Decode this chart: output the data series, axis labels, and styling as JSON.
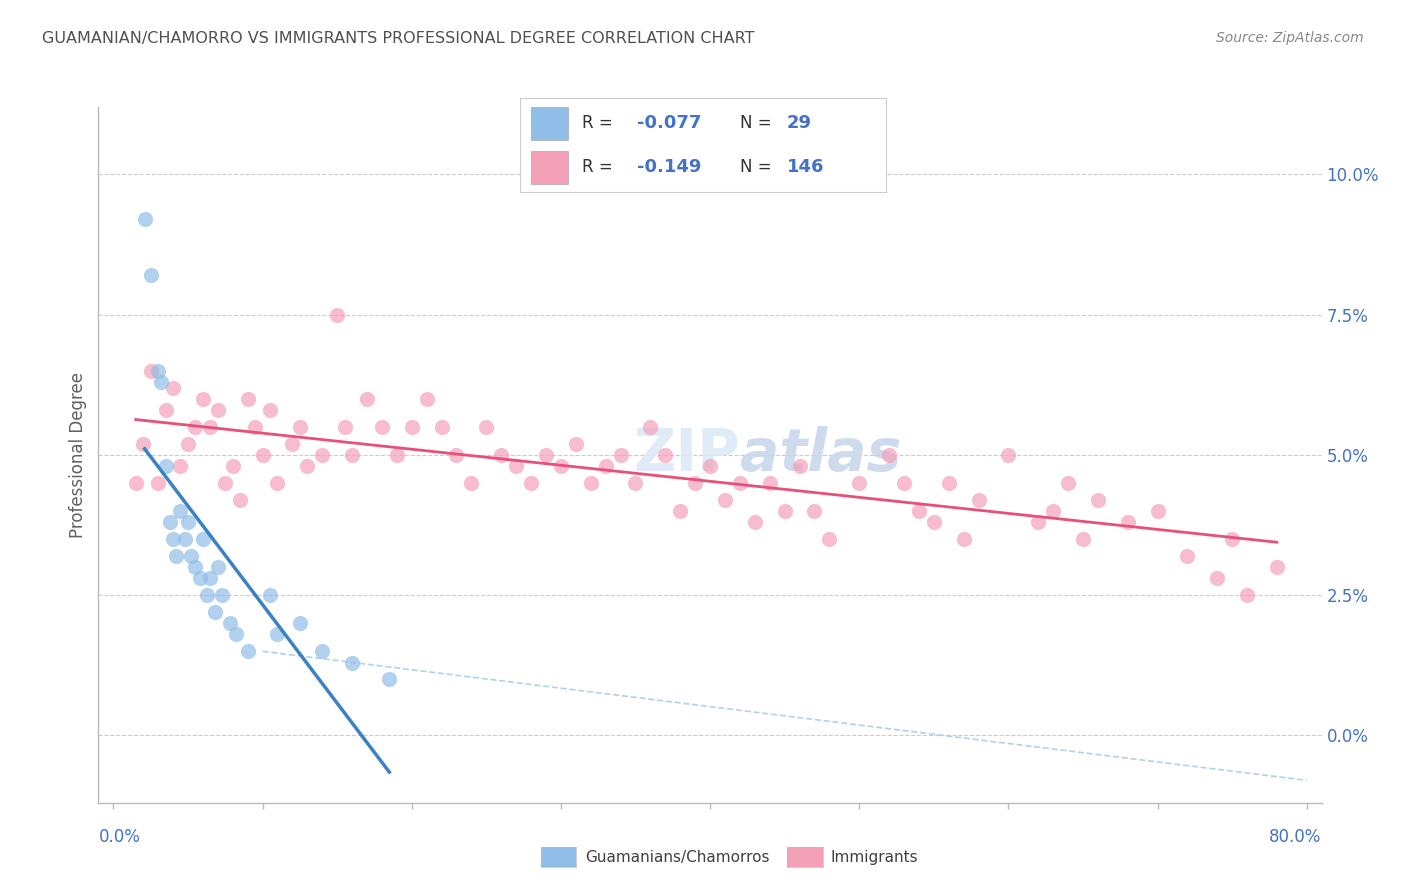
{
  "title": "GUAMANIAN/CHAMORRO VS IMMIGRANTS PROFESSIONAL DEGREE CORRELATION CHART",
  "source": "Source: ZipAtlas.com",
  "ylabel": "Professional Degree",
  "xlim": [
    0.0,
    80.0
  ],
  "ylim": [
    0.0,
    10.0
  ],
  "y_ticks": [
    0.0,
    2.5,
    5.0,
    7.5,
    10.0
  ],
  "r_blue": -0.077,
  "n_blue": 29,
  "r_pink": -0.149,
  "n_pink": 146,
  "blue_color": "#90BEE8",
  "pink_color": "#F4A0B8",
  "trend_blue_color": "#3B82C4",
  "trend_pink_color": "#E8507A",
  "diagonal_dash_color": "#A8CCEE",
  "background_color": "#FFFFFF",
  "title_color": "#505050",
  "axis_label_color": "#4472C4",
  "watermark_color": "#DCE9F5",
  "blue_scatter_x": [
    2.1,
    2.5,
    3.0,
    3.2,
    3.5,
    3.8,
    4.0,
    4.2,
    4.5,
    4.8,
    5.0,
    5.2,
    5.5,
    5.8,
    6.0,
    6.3,
    6.5,
    6.8,
    7.0,
    7.3,
    7.8,
    8.2,
    9.0,
    10.5,
    11.0,
    12.5,
    14.0,
    16.0,
    18.5
  ],
  "blue_scatter_y": [
    9.2,
    8.2,
    6.5,
    6.3,
    4.8,
    3.8,
    3.5,
    3.2,
    4.0,
    3.5,
    3.8,
    3.2,
    3.0,
    2.8,
    3.5,
    2.5,
    2.8,
    2.2,
    3.0,
    2.5,
    2.0,
    1.8,
    1.5,
    2.5,
    1.8,
    2.0,
    1.5,
    1.3,
    1.0
  ],
  "pink_scatter_x": [
    1.5,
    2.0,
    2.5,
    3.0,
    3.5,
    4.0,
    4.5,
    5.0,
    5.5,
    6.0,
    6.5,
    7.0,
    7.5,
    8.0,
    8.5,
    9.0,
    9.5,
    10.0,
    10.5,
    11.0,
    12.0,
    12.5,
    13.0,
    14.0,
    15.0,
    15.5,
    16.0,
    17.0,
    18.0,
    19.0,
    20.0,
    21.0,
    22.0,
    23.0,
    24.0,
    25.0,
    26.0,
    27.0,
    28.0,
    29.0,
    30.0,
    31.0,
    32.0,
    33.0,
    34.0,
    35.0,
    36.0,
    37.0,
    38.0,
    39.0,
    40.0,
    41.0,
    42.0,
    43.0,
    44.0,
    45.0,
    46.0,
    47.0,
    48.0,
    50.0,
    52.0,
    53.0,
    54.0,
    55.0,
    56.0,
    57.0,
    58.0,
    60.0,
    62.0,
    63.0,
    64.0,
    65.0,
    66.0,
    68.0,
    70.0,
    72.0,
    74.0,
    75.0,
    76.0,
    78.0
  ],
  "pink_scatter_y": [
    4.5,
    5.2,
    6.5,
    4.5,
    5.8,
    6.2,
    4.8,
    5.2,
    5.5,
    6.0,
    5.5,
    5.8,
    4.5,
    4.8,
    4.2,
    6.0,
    5.5,
    5.0,
    5.8,
    4.5,
    5.2,
    5.5,
    4.8,
    5.0,
    7.5,
    5.5,
    5.0,
    6.0,
    5.5,
    5.0,
    5.5,
    6.0,
    5.5,
    5.0,
    4.5,
    5.5,
    5.0,
    4.8,
    4.5,
    5.0,
    4.8,
    5.2,
    4.5,
    4.8,
    5.0,
    4.5,
    5.5,
    5.0,
    4.0,
    4.5,
    4.8,
    4.2,
    4.5,
    3.8,
    4.5,
    4.0,
    4.8,
    4.0,
    3.5,
    4.5,
    5.0,
    4.5,
    4.0,
    3.8,
    4.5,
    3.5,
    4.2,
    5.0,
    3.8,
    4.0,
    4.5,
    3.5,
    4.2,
    3.8,
    4.0,
    3.2,
    2.8,
    3.5,
    2.5,
    3.0
  ]
}
